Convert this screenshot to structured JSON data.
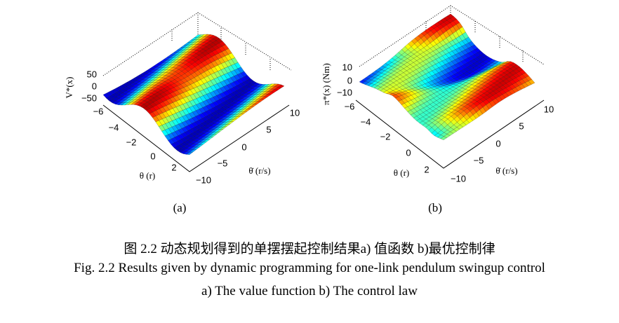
{
  "figure": {
    "panels": [
      {
        "z_label": "V*(x)",
        "z_ticks": [
          "50",
          "0",
          "−50"
        ],
        "theta_ticks": [
          "−6",
          "−4",
          "−2",
          "0",
          "2"
        ],
        "theta_label": "θ (r)",
        "thetadot_ticks": [
          "10",
          "5",
          "0",
          "−5",
          "−10"
        ],
        "thetadot_label": "θ̇ (r/s)",
        "subcaption": "(a)"
      },
      {
        "z_label": "π*(x) (Nm)",
        "z_ticks": [
          "10",
          "0",
          "−10"
        ],
        "theta_ticks": [
          "−6",
          "−4",
          "−2",
          "0",
          "2"
        ],
        "theta_label": "θ (r)",
        "thetadot_ticks": [
          "10",
          "5",
          "0",
          "−5",
          "−10"
        ],
        "thetadot_label": "θ̇ (r/s)",
        "subcaption": "(b)"
      }
    ],
    "caption_cn": "图 2.2 动态规划得到的单摆摆起控制结果a) 值函数 b)最优控制律",
    "caption_en": "Fig. 2.2 Results given by dynamic programming for one-link pendulum swingup control",
    "caption_en_2": "a) The value function b) The control law"
  }
}
